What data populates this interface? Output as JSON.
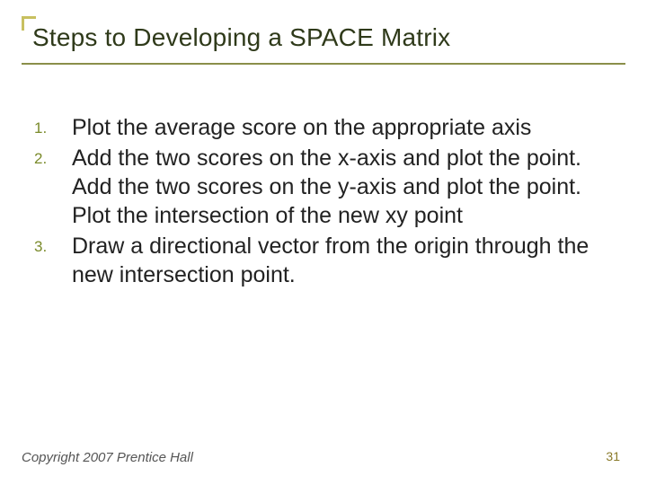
{
  "title": "Steps to Developing a SPACE Matrix",
  "accent_color": "#c8c060",
  "rule_color": "#8a8f4a",
  "number_color": "#7a8a2a",
  "text_color": "#222222",
  "title_color": "#2f3a1a",
  "title_fontsize": 28,
  "body_fontsize": 25,
  "number_fontsize": 17,
  "items": [
    {
      "n": "1.",
      "text": "Plot the average score on the appropriate axis"
    },
    {
      "n": "2.",
      "text": "Add the two scores on the x-axis and plot the point. Add the two scores on the y-axis and plot the point. Plot the intersection of the new xy point"
    },
    {
      "n": "3.",
      "text": "Draw a directional vector from the origin through the new intersection point."
    }
  ],
  "footer": "Copyright 2007 Prentice Hall",
  "page_number": "31",
  "pagenum_color": "#8a7a2a",
  "footer_color": "#555555"
}
